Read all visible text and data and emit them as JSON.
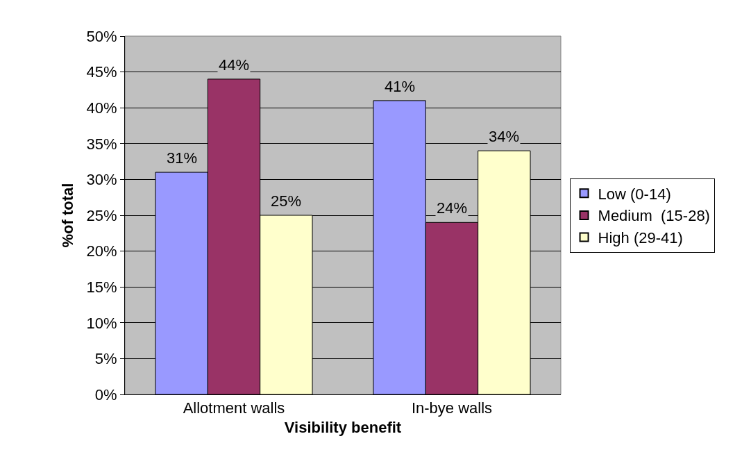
{
  "chart_data": {
    "type": "bar",
    "xlabel": "Visibility benefit",
    "ylabel": "%of total",
    "categories": [
      "Allotment walls",
      "In-bye walls"
    ],
    "series": [
      {
        "name": "Low (0-14)",
        "color": "#9999ff",
        "values": [
          31,
          41
        ],
        "value_labels": [
          "31%",
          "41%"
        ]
      },
      {
        "name": "Medium  (15-28)",
        "color": "#993366",
        "values": [
          44,
          24
        ],
        "value_labels": [
          "44%",
          "24%"
        ]
      },
      {
        "name": "High (29-41)",
        "color": "#ffffcc",
        "values": [
          25,
          34
        ],
        "value_labels": [
          "25%",
          "34%"
        ]
      }
    ],
    "ylim": [
      0,
      50
    ],
    "yticks": [
      {
        "value": 0,
        "label": "0%"
      },
      {
        "value": 5,
        "label": "5%"
      },
      {
        "value": 10,
        "label": "10%"
      },
      {
        "value": 15,
        "label": "15%"
      },
      {
        "value": 20,
        "label": "20%"
      },
      {
        "value": 25,
        "label": "25%"
      },
      {
        "value": 30,
        "label": "30%"
      },
      {
        "value": 35,
        "label": "35%"
      },
      {
        "value": 40,
        "label": "40%"
      },
      {
        "value": 45,
        "label": "45%"
      },
      {
        "value": 50,
        "label": "50%"
      }
    ],
    "grid": "y",
    "legend": "right"
  }
}
